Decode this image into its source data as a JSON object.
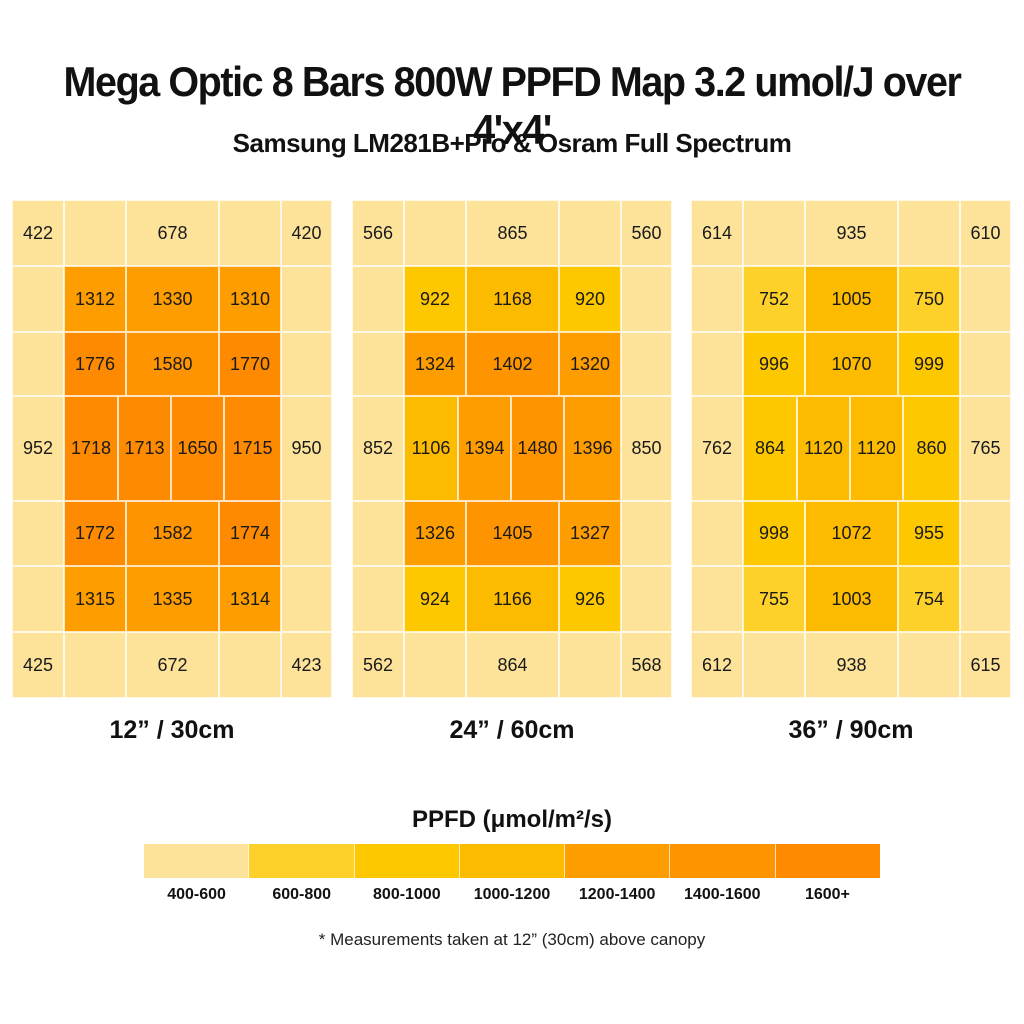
{
  "header": {
    "title": "Mega Optic 8 Bars 800W PPFD Map 3.2 umol/J over 4'x4'",
    "subtitle": "Samsung LM281B+Pro & Osram Full Spectrum"
  },
  "chart_data": {
    "type": "heatmap",
    "title": "Mega Optic 8 Bars 800W PPFD Map 3.2 umol/J over 4'x4'",
    "subtitle": "Samsung LM281B+Pro & Osram Full Spectrum",
    "unit": "PPFD (μmol/m²/s)",
    "colors": [
      "#fde39a",
      "#fdd129",
      "#fdc800",
      "#fdbb00",
      "#fd9d00",
      "#fd9400",
      "#fd8a00"
    ],
    "legend": {
      "title": "PPFD (μmol/m²/s)",
      "ranges": [
        "400-600",
        "600-800",
        "800-1000",
        "1000-1200",
        "1200-1400",
        "1400-1600",
        "1600+"
      ],
      "bounds": [
        400,
        600,
        800,
        1000,
        1200,
        1400,
        1600,
        100000
      ],
      "colors": [
        "#fde39a",
        "#fdd129",
        "#fdc800",
        "#fdbb00",
        "#fd9d00",
        "#fd9400",
        "#fd8a00"
      ]
    },
    "grids": [
      {
        "label": "12” / 30cm",
        "rows": [
          [
            "422",
            "678",
            "420"
          ],
          [
            "1312",
            "1330",
            "1310"
          ],
          [
            "1776",
            "1580",
            "1770"
          ],
          [
            "952",
            "1718",
            "1713",
            "1650",
            "1715",
            "950"
          ],
          [
            "1772",
            "1582",
            "1774"
          ],
          [
            "1315",
            "1335",
            "1314"
          ],
          [
            "425",
            "672",
            "423"
          ]
        ]
      },
      {
        "label": "24” / 60cm",
        "rows": [
          [
            "566",
            "865",
            "560"
          ],
          [
            "922",
            "1168",
            "920"
          ],
          [
            "1324",
            "1402",
            "1320"
          ],
          [
            "852",
            "1106",
            "1394",
            "1480",
            "1396",
            "850"
          ],
          [
            "1326",
            "1405",
            "1327"
          ],
          [
            "924",
            "1166",
            "926"
          ],
          [
            "562",
            "864",
            "568"
          ]
        ]
      },
      {
        "label": "36” / 90cm",
        "rows": [
          [
            "614",
            "935",
            "610"
          ],
          [
            "752",
            "1005",
            "750"
          ],
          [
            "996",
            "1070",
            "999"
          ],
          [
            "762",
            "864",
            "1120",
            "1120",
            "860",
            "765"
          ],
          [
            "998",
            "1072",
            "955"
          ],
          [
            "755",
            "1003",
            "754"
          ],
          [
            "612",
            "938",
            "615"
          ]
        ]
      }
    ]
  },
  "footnote": "* Measurements taken at 12” (30cm) above canopy"
}
